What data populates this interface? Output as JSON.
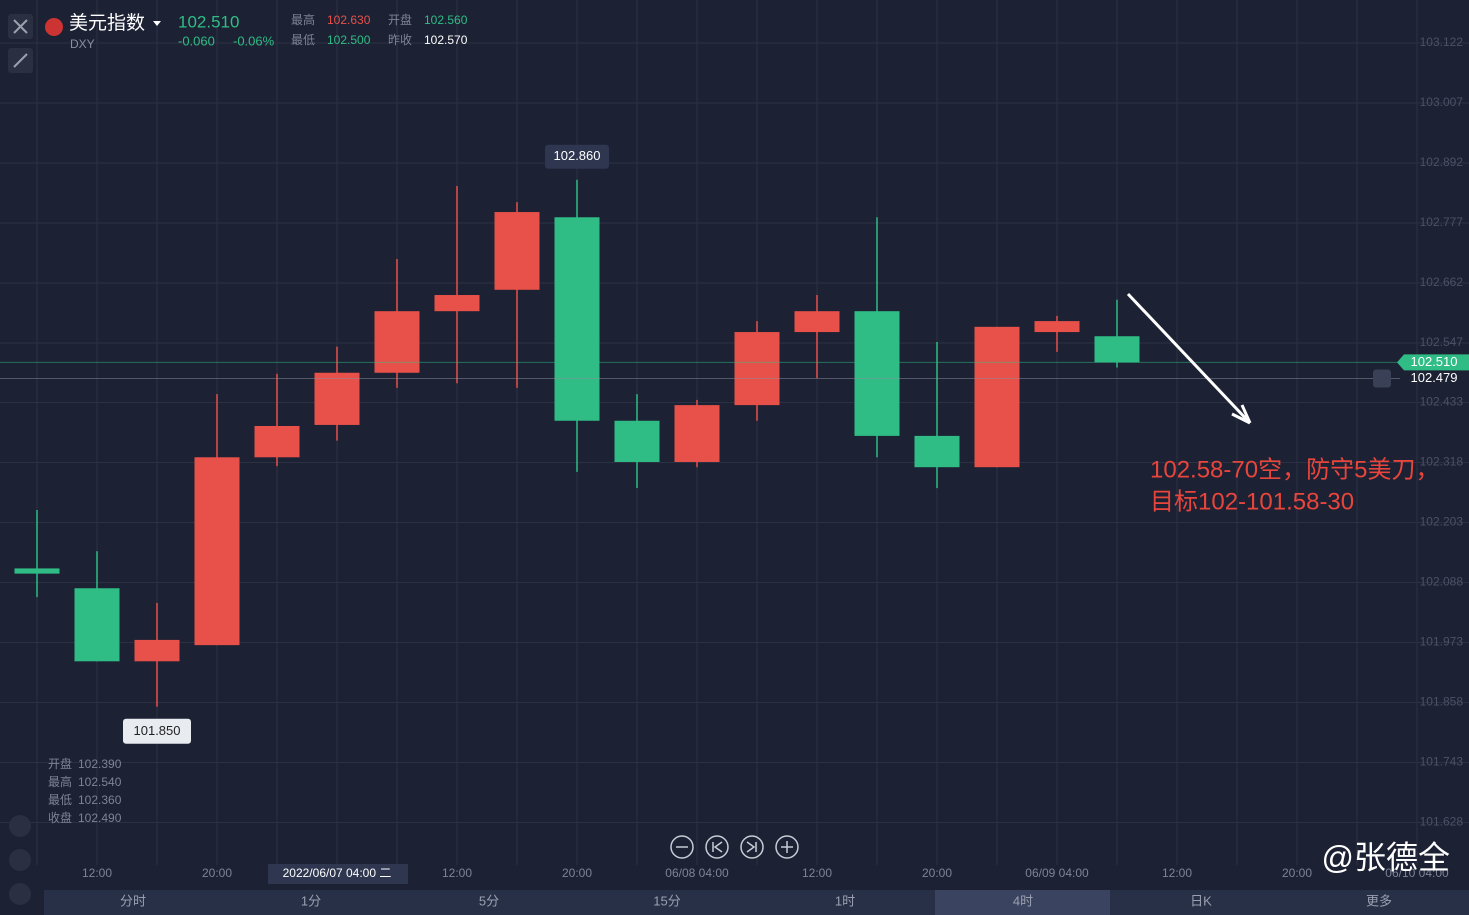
{
  "header": {
    "name": "美元指数",
    "symbol": "DXY",
    "price": "102.510",
    "change": "-0.060",
    "change_pct": "-0.06%",
    "stats": [
      [
        "最高",
        "102.630"
      ],
      [
        "开盘",
        "102.560"
      ],
      [
        "最低",
        "102.500"
      ],
      [
        "昨收",
        "102.570"
      ]
    ]
  },
  "readout": [
    [
      "开盘",
      "102.390"
    ],
    [
      "最高",
      "102.540"
    ],
    [
      "最低",
      "102.360"
    ],
    [
      "收盘",
      "102.490"
    ]
  ],
  "tabs": [
    "分时",
    "1分",
    "5分",
    "15分",
    "1时",
    "4时",
    "日K",
    "更多"
  ],
  "watermark": "@张德全",
  "chart_data": {
    "type": "candlestick",
    "categories": [
      null,
      "12:00",
      null,
      "20:00",
      null,
      "2022/06/07 04:00 二",
      null,
      "12:00",
      null,
      "20:00",
      null,
      "06/08 04:00",
      null,
      "12:00",
      null,
      "20:00",
      null,
      "06/09 04:00",
      null,
      "12:00",
      null,
      "20:00",
      null,
      "06/10 04:00"
    ],
    "open": [
      102.115,
      102.077,
      101.937,
      101.968,
      102.328,
      102.39,
      102.49,
      102.608,
      102.649,
      102.788,
      102.398,
      102.319,
      102.428,
      102.568,
      102.608,
      102.369,
      102.309,
      102.568,
      102.56,
      null,
      null,
      null,
      null,
      null
    ],
    "high": [
      102.227,
      102.148,
      102.049,
      102.449,
      102.488,
      102.54,
      102.708,
      102.848,
      102.817,
      102.86,
      102.449,
      102.438,
      102.589,
      102.639,
      102.788,
      102.549,
      102.578,
      102.599,
      102.63,
      null,
      null,
      null,
      null,
      null
    ],
    "low": [
      102.06,
      101.937,
      101.85,
      101.968,
      102.311,
      102.36,
      102.461,
      102.47,
      102.461,
      102.3,
      102.269,
      102.309,
      102.398,
      102.48,
      102.328,
      102.269,
      102.309,
      102.53,
      102.5,
      null,
      null,
      null,
      null,
      null
    ],
    "close": [
      102.105,
      101.937,
      101.978,
      102.328,
      102.388,
      102.49,
      102.608,
      102.639,
      102.798,
      102.398,
      102.319,
      102.428,
      102.568,
      102.608,
      102.369,
      102.309,
      102.578,
      102.589,
      102.51,
      null,
      null,
      null,
      null,
      null
    ],
    "up_color": "#e8514a",
    "down_color": "#2fbd85",
    "ylim": [
      101.5466,
      103.2044
    ],
    "yticks": [
      {
        "value": 103.122,
        "label": "103.122"
      },
      {
        "value": 103.007,
        "label": "103.007"
      },
      {
        "value": 102.892,
        "label": "102.892"
      },
      {
        "value": 102.777,
        "label": "102.777"
      },
      {
        "value": 102.662,
        "label": "102.662"
      },
      {
        "value": 102.547,
        "label": "102.547"
      },
      {
        "value": 102.433,
        "label": "102.433"
      },
      {
        "value": 102.318,
        "label": "102.318"
      },
      {
        "value": 102.203,
        "label": "102.203"
      },
      {
        "value": 102.088,
        "label": "102.088"
      },
      {
        "value": 101.973,
        "label": "101.973"
      },
      {
        "value": 101.858,
        "label": "101.858"
      },
      {
        "value": 101.743,
        "label": "101.743"
      },
      {
        "value": 101.628,
        "label": "101.628"
      }
    ],
    "grid": true,
    "high_callout": {
      "value": 102.86,
      "label": "102.860",
      "index": 9
    },
    "low_callout": {
      "value": 101.85,
      "label": "101.850",
      "index": 2
    },
    "last_price": {
      "value": 102.51,
      "label": "102.510"
    },
    "alert_price": {
      "value": 102.479,
      "label": "102.479"
    },
    "annotations": [
      "102.58-70空，防守5美刀，",
      "目标102-101.58-30"
    ]
  }
}
